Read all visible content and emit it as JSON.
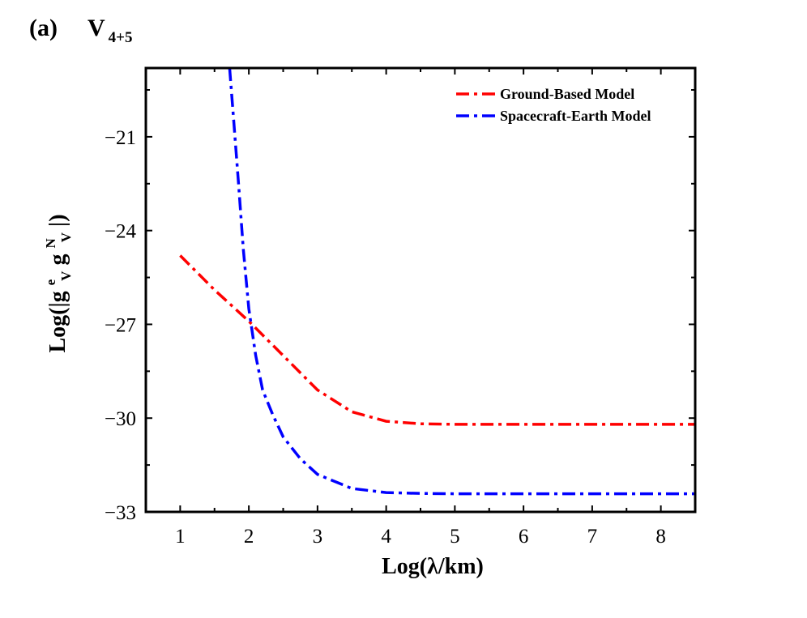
{
  "panel_label": "(a)",
  "title": {
    "main": "V",
    "subscript": "4+5"
  },
  "colors": {
    "ground": "#ff0000",
    "spacecraft": "#0000ff",
    "axis": "#000000"
  },
  "chart_data": {
    "type": "line",
    "xlabel": "Log(λ/km)",
    "ylabel": {
      "prefix": "Log(|g",
      "sub1": "V",
      "sup1": "e",
      "mid": "g",
      "sub2": "V",
      "sup2": "N",
      "suffix": "|)"
    },
    "xlim": [
      0.5,
      8.5
    ],
    "ylim": [
      -33,
      -18.8
    ],
    "xticks": [
      1,
      2,
      3,
      4,
      5,
      6,
      7,
      8
    ],
    "xtick_labels": [
      "1",
      "2",
      "3",
      "4",
      "5",
      "6",
      "7",
      "8"
    ],
    "yticks": [
      -21,
      -24,
      -27,
      -30,
      -33
    ],
    "ytick_labels": [
      "−21",
      "−24",
      "−27",
      "−30",
      "−33"
    ],
    "grid": false,
    "legend_position": "top-right",
    "series": [
      {
        "name": "Ground-Based Model",
        "color": "#ff0000",
        "dash": "dash-dot",
        "x": [
          1.0,
          1.5,
          2.0,
          2.5,
          3.0,
          3.5,
          4.0,
          4.5,
          5.0,
          6.0,
          7.0,
          8.0,
          8.5
        ],
        "y": [
          -24.8,
          -25.9,
          -26.9,
          -28.0,
          -29.1,
          -29.8,
          -30.1,
          -30.18,
          -30.2,
          -30.2,
          -30.2,
          -30.2,
          -30.2
        ]
      },
      {
        "name": "Spacecraft-Earth Model",
        "color": "#0000ff",
        "dash": "dash-dot",
        "x": [
          1.72,
          1.78,
          1.85,
          1.92,
          2.0,
          2.1,
          2.2,
          2.35,
          2.5,
          2.75,
          3.0,
          3.5,
          4.0,
          4.5,
          5.0,
          6.0,
          7.0,
          8.0,
          8.5
        ],
        "y": [
          -18.8,
          -20.5,
          -22.5,
          -24.6,
          -26.5,
          -28.0,
          -29.1,
          -29.9,
          -30.6,
          -31.3,
          -31.8,
          -32.25,
          -32.38,
          -32.41,
          -32.42,
          -32.42,
          -32.42,
          -32.42,
          -32.42
        ]
      }
    ]
  }
}
